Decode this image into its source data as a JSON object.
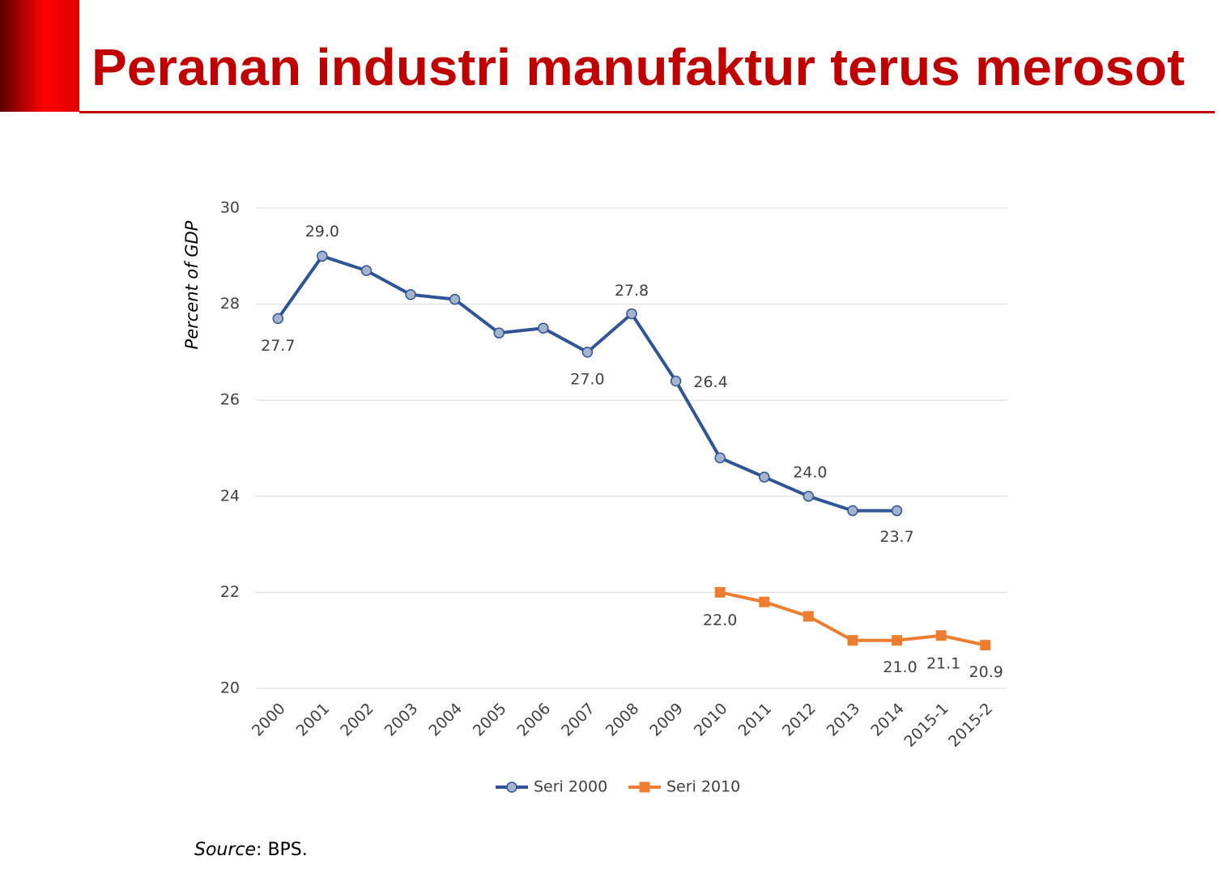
{
  "header": {
    "title": "Peranan industri manufaktur terus merosot"
  },
  "source": {
    "label": "Source",
    "text": ": BPS."
  },
  "chart_data": {
    "type": "line",
    "y_label": "Percent of GDP",
    "categories": [
      "2000",
      "2001",
      "2002",
      "2003",
      "2004",
      "2005",
      "2006",
      "2007",
      "2008",
      "2009",
      "2010",
      "2011",
      "2012",
      "2013",
      "2014",
      "2015-1",
      "2015-2"
    ],
    "series": [
      {
        "name": "Seri 2000",
        "color": "#2f5597",
        "marker": "circle",
        "values": [
          27.7,
          29.0,
          28.7,
          28.2,
          28.1,
          27.4,
          27.5,
          27.0,
          27.8,
          26.4,
          24.8,
          24.4,
          24.0,
          23.7,
          23.7,
          null,
          null
        ],
        "value_labels": [
          "27.7",
          "29.0",
          null,
          null,
          null,
          null,
          null,
          "27.0",
          "27.8",
          "26.4",
          null,
          null,
          "24.0",
          null,
          "23.7",
          null,
          null
        ]
      },
      {
        "name": "Seri 2010",
        "color": "#ed7d31",
        "marker": "square",
        "values": [
          null,
          null,
          null,
          null,
          null,
          null,
          null,
          null,
          null,
          null,
          22.0,
          21.8,
          21.5,
          21.0,
          21.0,
          21.1,
          20.9
        ],
        "value_labels": [
          null,
          null,
          null,
          null,
          null,
          null,
          null,
          null,
          null,
          null,
          "22.0",
          null,
          null,
          null,
          "21.0",
          "21.1",
          "20.9"
        ]
      }
    ],
    "ylim": [
      20,
      30
    ],
    "yticks": [
      20,
      22,
      24,
      26,
      28,
      30
    ],
    "grid": true,
    "legend": "bottom"
  }
}
